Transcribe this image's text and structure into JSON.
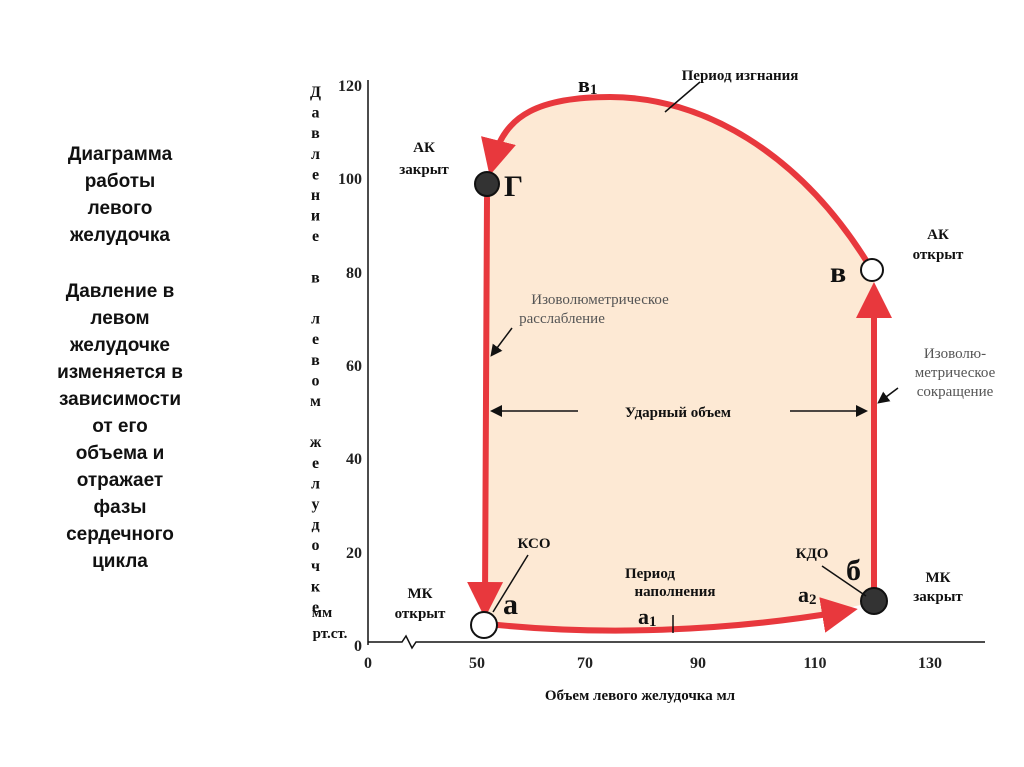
{
  "sidebar": {
    "title": [
      "Диаграмма",
      "работы",
      "левого",
      "желудочка"
    ],
    "text": [
      "Давление в",
      "левом",
      "желудочке",
      "изменяется в",
      "зависимости",
      "от его",
      "объема и",
      "отражает",
      "фазы",
      "сердечного",
      "цикла"
    ]
  },
  "axes": {
    "y_label": "Давление в левом желудочке",
    "y_unit": [
      "мм",
      "рт.ст."
    ],
    "y_ticks": [
      "0",
      "20",
      "40",
      "60",
      "80",
      "100",
      "120"
    ],
    "x_ticks": [
      "0",
      "50",
      "70",
      "90",
      "110",
      "130"
    ],
    "x_label": "Объем левого желудочка  мл"
  },
  "points": {
    "g": {
      "name": "г",
      "note": [
        "АК",
        "закрыт"
      ]
    },
    "v": {
      "name": "в",
      "note": [
        "АК",
        "открыт"
      ]
    },
    "a": {
      "name": "а",
      "note": [
        "МК",
        "открыт"
      ],
      "extra": "КСО"
    },
    "b": {
      "name": "б",
      "note": [
        "МК",
        "закрыт"
      ],
      "extra": "КДО"
    },
    "v1": {
      "letter": "в",
      "sub": "1"
    },
    "a1": {
      "letter": "а",
      "sub": "1"
    },
    "a2": {
      "letter": "а",
      "sub": "2"
    }
  },
  "phases": {
    "ejection": "Период изгнания",
    "relaxation": [
      "Изоволюметрическое",
      "расслабление"
    ],
    "stroke": "Ударный объем",
    "contraction": [
      "Изоволю-",
      "метрическое",
      "сокращение"
    ],
    "filling": [
      "Период",
      "наполнения"
    ]
  }
}
